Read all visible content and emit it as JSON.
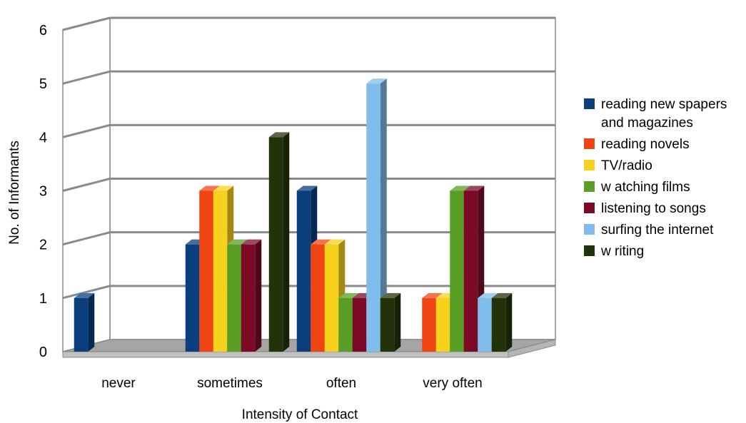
{
  "chart_data": {
    "type": "bar",
    "title": "",
    "xlabel": "Intensity of Contact",
    "ylabel": "No. of Informants",
    "ylim": [
      0,
      6
    ],
    "yticks": [
      0,
      1,
      2,
      3,
      4,
      5,
      6
    ],
    "categories": [
      "never",
      "sometimes",
      "often",
      "very often"
    ],
    "grid": true,
    "legend_position": "right",
    "style": "3d-clustered-column",
    "series": [
      {
        "name": "reading new spapers and magazines",
        "legend_lines": [
          "reading new spapers",
          "and magazines"
        ],
        "color": "#0a3e7c",
        "values": [
          1,
          2,
          3,
          0
        ]
      },
      {
        "name": "reading novels",
        "legend_lines": [
          "reading novels"
        ],
        "color": "#f04512",
        "values": [
          0,
          3,
          2,
          1
        ]
      },
      {
        "name": "TV/radio",
        "legend_lines": [
          "TV/radio"
        ],
        "color": "#f7d21c",
        "values": [
          0,
          3,
          2,
          1
        ]
      },
      {
        "name": "w atching films",
        "legend_lines": [
          "w atching films"
        ],
        "color": "#5a9e25",
        "values": [
          0,
          2,
          1,
          3
        ]
      },
      {
        "name": "listening to songs",
        "legend_lines": [
          "listening to songs"
        ],
        "color": "#7c0a27",
        "values": [
          0,
          2,
          1,
          3
        ]
      },
      {
        "name": "surfing the internet",
        "legend_lines": [
          "surfing the internet"
        ],
        "color": "#7fbdec",
        "values": [
          0,
          0,
          5,
          1
        ]
      },
      {
        "name": "w riting",
        "legend_lines": [
          "w riting"
        ],
        "color": "#233309",
        "values": [
          0,
          4,
          1,
          1
        ]
      }
    ]
  }
}
